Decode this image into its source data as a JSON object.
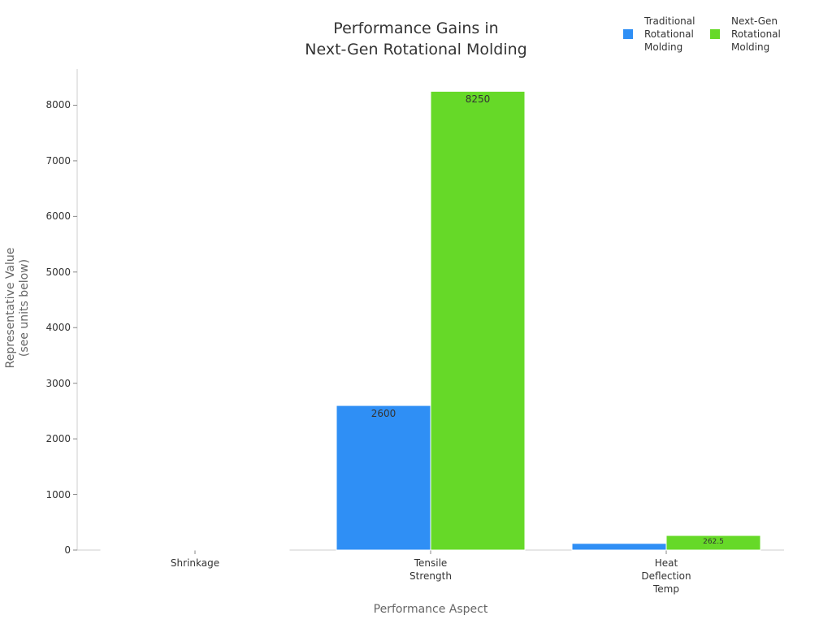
{
  "chart_data": {
    "type": "bar",
    "title": "Performance Gains in\nNext-Gen Rotational Molding",
    "x_label": "Performance Aspect",
    "y_label": "Representative Value\n(see units below)",
    "categories": [
      "Shrinkage",
      "Tensile\nStrength",
      "Heat\nDeflection\nTemp"
    ],
    "series": [
      {
        "name": "Traditional\nRotational\nMolding",
        "color": "#2f8ff5",
        "values": [
          2.5,
          2600,
          120
        ],
        "value_labels": [
          null,
          "2600",
          null
        ]
      },
      {
        "name": "Next-Gen\nRotational\nMolding",
        "color": "#66d928",
        "values": [
          1.5,
          8250,
          262.5
        ],
        "value_labels": [
          null,
          "8250",
          "262.5"
        ]
      }
    ],
    "ylim": [
      0,
      8650
    ],
    "yticks": [
      0,
      1000,
      2000,
      3000,
      4000,
      5000,
      6000,
      7000,
      8000
    ],
    "grid": false,
    "legend": "top-right"
  }
}
